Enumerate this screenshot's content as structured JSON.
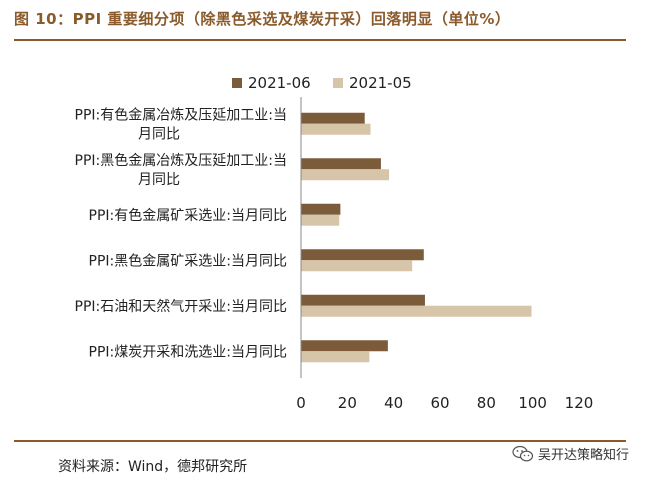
{
  "header": {
    "title": "图 10：PPI 重要细分项（除黑色采选及煤炭开采）回落明显（单位%）"
  },
  "footer": {
    "source": "资料来源：Wind，德邦研究所"
  },
  "watermark": {
    "text": "吴开达策略知行",
    "icon": "wechat-icon"
  },
  "colors": {
    "accent": "#8B5A2B",
    "series_2021_06": "#7B5B3A",
    "series_2021_05": "#D6C5A8"
  },
  "chart_data": {
    "type": "bar",
    "orientation": "horizontal",
    "categories": [
      "PPI:有色金属冶炼及压延加工业:当月同比",
      "PPI:黑色金属冶炼及压延加工业:当月同比",
      "PPI:有色金属矿采选业:当月同比",
      "PPI:黑色金属矿采选业:当月同比",
      "PPI:石油和天然气开采业:当月同比",
      "PPI:煤炭开采和洗选业:当月同比"
    ],
    "category_lines": [
      [
        "PPI:有色金属冶炼及压延加工业:当",
        "月同比"
      ],
      [
        "PPI:黑色金属冶炼及压延加工业:当",
        "月同比"
      ],
      [
        "PPI:有色金属矿采选业:当月同比"
      ],
      [
        "PPI:黑色金属矿采选业:当月同比"
      ],
      [
        "PPI:石油和天然气开采业:当月同比"
      ],
      [
        "PPI:煤炭开采和洗选业:当月同比"
      ]
    ],
    "series": [
      {
        "name": "2021-06",
        "values": [
          27.5,
          34.5,
          17,
          53,
          53.5,
          37.5
        ]
      },
      {
        "name": "2021-05",
        "values": [
          30,
          38,
          16.5,
          48,
          99.5,
          29.5
        ]
      }
    ],
    "xlim": [
      0,
      120
    ],
    "xticks": [
      "0",
      "20",
      "40",
      "60",
      "80",
      "100",
      "120"
    ],
    "legend_position": "top",
    "grid": false,
    "xlabel": "",
    "ylabel": ""
  }
}
